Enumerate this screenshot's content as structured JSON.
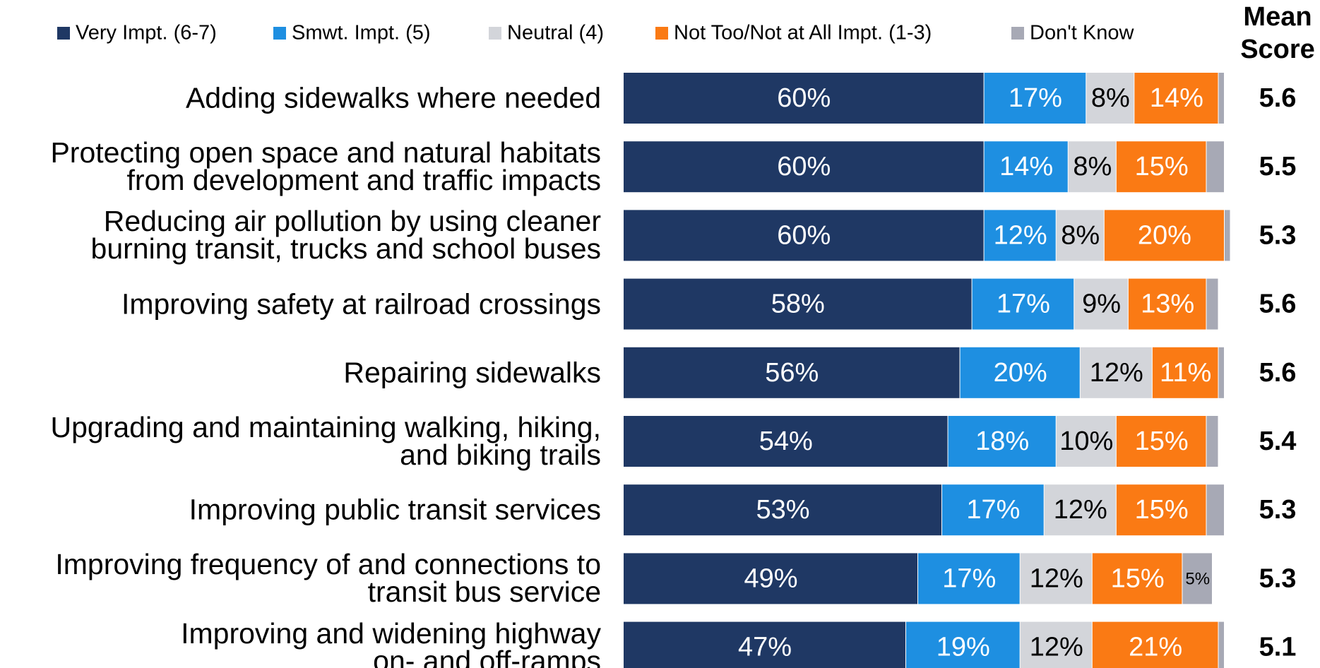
{
  "chart_data": {
    "type": "stacked_bar_horizontal",
    "categories": [
      "Adding sidewalks where needed",
      "Protecting open space and natural habitats\nfrom development and traffic impacts",
      "Reducing air pollution by using cleaner\nburning transit, trucks and school buses",
      "Improving safety at railroad crossings",
      "Repairing sidewalks",
      "Upgrading and maintaining walking, hiking,\nand biking trails",
      "Improving public transit services",
      "Improving frequency of and connections to\ntransit bus service",
      "Improving and widening highway\non- and off-ramps"
    ],
    "xlim": [
      0,
      100
    ],
    "series": [
      {
        "name": "Very Impt. (6-7)",
        "color": "#1f3864",
        "label_color": "#ffffff",
        "values": [
          60,
          60,
          60,
          58,
          56,
          54,
          53,
          49,
          47
        ],
        "value_labels": [
          "60%",
          "60%",
          "60%",
          "58%",
          "56%",
          "54%",
          "53%",
          "49%",
          "47%"
        ]
      },
      {
        "name": "Smwt. Impt. (5)",
        "color": "#1e8fe1",
        "label_color": "#ffffff",
        "values": [
          17,
          14,
          12,
          17,
          20,
          18,
          17,
          17,
          19
        ],
        "value_labels": [
          "17%",
          "14%",
          "12%",
          "17%",
          "20%",
          "18%",
          "17%",
          "17%",
          "19%"
        ]
      },
      {
        "name": "Neutral (4)",
        "color": "#d3d5da",
        "label_color": "#000000",
        "values": [
          8,
          8,
          8,
          9,
          12,
          10,
          12,
          12,
          12
        ],
        "value_labels": [
          "8%",
          "8%",
          "8%",
          "9%",
          "12%",
          "10%",
          "12%",
          "12%",
          "12%"
        ]
      },
      {
        "name": "Not Too/Not at All Impt. (1-3)",
        "color": "#fa7a14",
        "label_color": "#ffffff",
        "values": [
          14,
          15,
          20,
          13,
          11,
          15,
          15,
          15,
          21
        ],
        "value_labels": [
          "14%",
          "15%",
          "20%",
          "13%",
          "11%",
          "15%",
          "15%",
          "15%",
          "21%"
        ]
      },
      {
        "name": "Don't Know",
        "color": "#a7a9b5",
        "label_color": "#000000",
        "values": [
          1,
          3,
          1,
          2,
          1,
          2,
          3,
          5,
          1
        ],
        "value_labels": [
          null,
          null,
          null,
          null,
          null,
          null,
          null,
          "5%",
          null
        ]
      }
    ],
    "mean_score_header": [
      "Mean",
      "Score"
    ],
    "mean_scores": [
      5.6,
      5.5,
      5.3,
      5.6,
      5.6,
      5.4,
      5.3,
      5.3,
      5.1
    ]
  }
}
